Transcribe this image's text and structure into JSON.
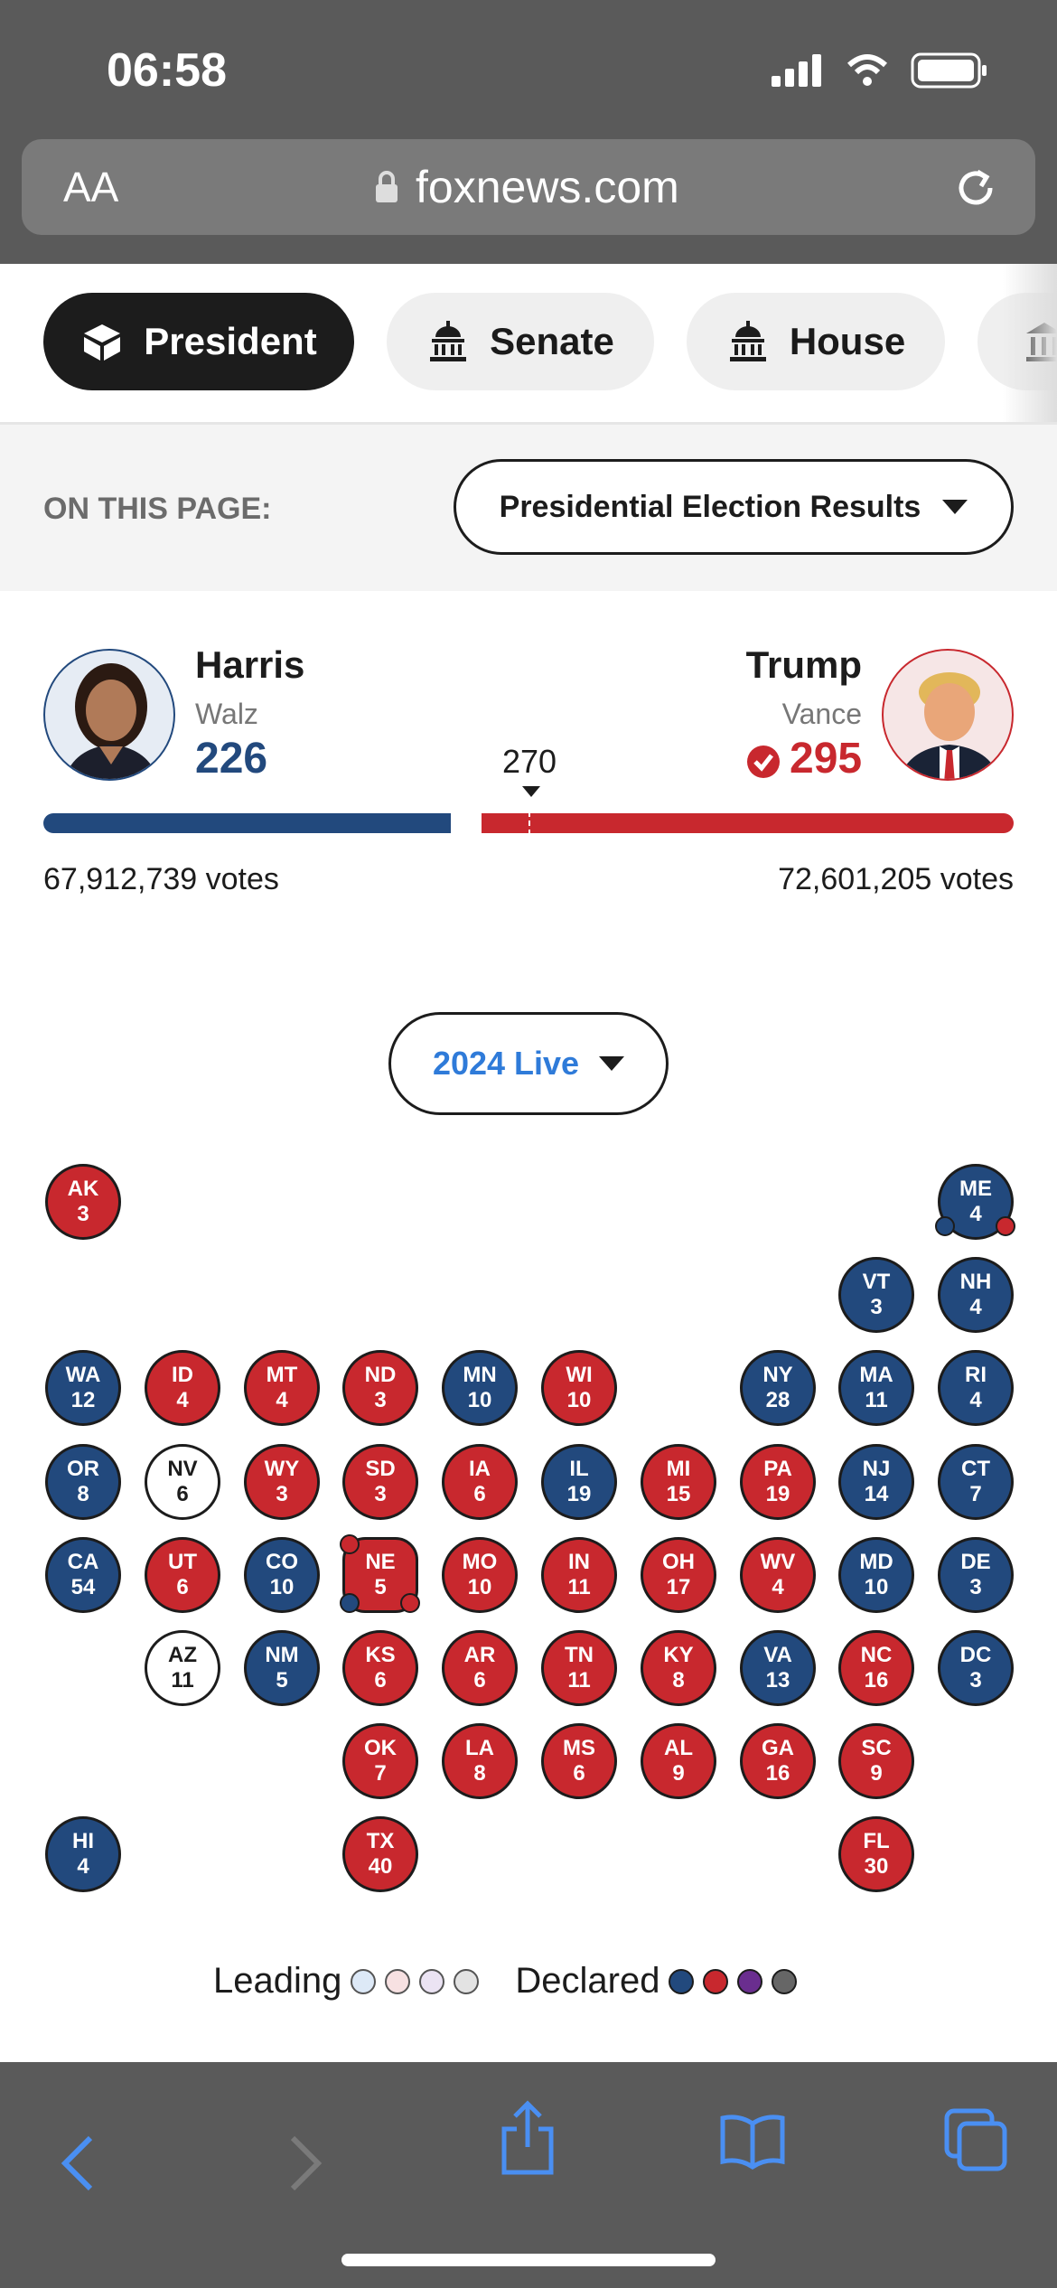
{
  "status_bar": {
    "time": "06:58"
  },
  "browser": {
    "text_size": "AA",
    "url": "foxnews.com"
  },
  "nav_tabs": [
    {
      "label": "President",
      "active": true
    },
    {
      "label": "Senate"
    },
    {
      "label": "House"
    }
  ],
  "on_this_page": {
    "label": "ON THIS PAGE:",
    "dropdown": "Presidential Election Results"
  },
  "race": {
    "left": {
      "name": "Harris",
      "running_mate": "Walz",
      "electoral_votes": "226",
      "votes": "67,912,739 votes"
    },
    "right": {
      "name": "Trump",
      "running_mate": "Vance",
      "electoral_votes": "295",
      "votes": "72,601,205 votes",
      "winner": true
    },
    "threshold": "270"
  },
  "year_select": "2024 Live",
  "states": [
    {
      "abbr": "AK",
      "ev": "3",
      "party": "r"
    },
    {
      "abbr": "ME",
      "ev": "4",
      "party": "d"
    },
    {
      "abbr": "VT",
      "ev": "3",
      "party": "d"
    },
    {
      "abbr": "NH",
      "ev": "4",
      "party": "d"
    },
    {
      "abbr": "WA",
      "ev": "12",
      "party": "d"
    },
    {
      "abbr": "ID",
      "ev": "4",
      "party": "r"
    },
    {
      "abbr": "MT",
      "ev": "4",
      "party": "r"
    },
    {
      "abbr": "ND",
      "ev": "3",
      "party": "r"
    },
    {
      "abbr": "MN",
      "ev": "10",
      "party": "d"
    },
    {
      "abbr": "WI",
      "ev": "10",
      "party": "r"
    },
    {
      "abbr": "NY",
      "ev": "28",
      "party": "d"
    },
    {
      "abbr": "MA",
      "ev": "11",
      "party": "d"
    },
    {
      "abbr": "RI",
      "ev": "4",
      "party": "d"
    },
    {
      "abbr": "OR",
      "ev": "8",
      "party": "d"
    },
    {
      "abbr": "NV",
      "ev": "6",
      "party": "u"
    },
    {
      "abbr": "WY",
      "ev": "3",
      "party": "r"
    },
    {
      "abbr": "SD",
      "ev": "3",
      "party": "r"
    },
    {
      "abbr": "IA",
      "ev": "6",
      "party": "r"
    },
    {
      "abbr": "IL",
      "ev": "19",
      "party": "d"
    },
    {
      "abbr": "MI",
      "ev": "15",
      "party": "r"
    },
    {
      "abbr": "PA",
      "ev": "19",
      "party": "r"
    },
    {
      "abbr": "NJ",
      "ev": "14",
      "party": "d"
    },
    {
      "abbr": "CT",
      "ev": "7",
      "party": "d"
    },
    {
      "abbr": "CA",
      "ev": "54",
      "party": "d"
    },
    {
      "abbr": "UT",
      "ev": "6",
      "party": "r"
    },
    {
      "abbr": "CO",
      "ev": "10",
      "party": "d"
    },
    {
      "abbr": "NE",
      "ev": "5",
      "party": "r"
    },
    {
      "abbr": "MO",
      "ev": "10",
      "party": "r"
    },
    {
      "abbr": "IN",
      "ev": "11",
      "party": "r"
    },
    {
      "abbr": "OH",
      "ev": "17",
      "party": "r"
    },
    {
      "abbr": "WV",
      "ev": "4",
      "party": "r"
    },
    {
      "abbr": "MD",
      "ev": "10",
      "party": "d"
    },
    {
      "abbr": "DE",
      "ev": "3",
      "party": "d"
    },
    {
      "abbr": "AZ",
      "ev": "11",
      "party": "u"
    },
    {
      "abbr": "NM",
      "ev": "5",
      "party": "d"
    },
    {
      "abbr": "KS",
      "ev": "6",
      "party": "r"
    },
    {
      "abbr": "AR",
      "ev": "6",
      "party": "r"
    },
    {
      "abbr": "TN",
      "ev": "11",
      "party": "r"
    },
    {
      "abbr": "KY",
      "ev": "8",
      "party": "r"
    },
    {
      "abbr": "VA",
      "ev": "13",
      "party": "d"
    },
    {
      "abbr": "NC",
      "ev": "16",
      "party": "r"
    },
    {
      "abbr": "DC",
      "ev": "3",
      "party": "d"
    },
    {
      "abbr": "OK",
      "ev": "7",
      "party": "r"
    },
    {
      "abbr": "LA",
      "ev": "8",
      "party": "r"
    },
    {
      "abbr": "MS",
      "ev": "6",
      "party": "r"
    },
    {
      "abbr": "AL",
      "ev": "9",
      "party": "r"
    },
    {
      "abbr": "GA",
      "ev": "16",
      "party": "r"
    },
    {
      "abbr": "SC",
      "ev": "9",
      "party": "r"
    },
    {
      "abbr": "HI",
      "ev": "4",
      "party": "d"
    },
    {
      "abbr": "TX",
      "ev": "40",
      "party": "r"
    },
    {
      "abbr": "FL",
      "ev": "30",
      "party": "r"
    }
  ],
  "legend": {
    "leading": "Leading",
    "declared": "Declared"
  },
  "colors": {
    "dem": "#22497d",
    "rep": "#c8282e",
    "leading_dem": "#dde9f7",
    "leading_rep": "#f7e1e2",
    "leading_other": "#ebe3f3",
    "leading_gray": "#e3e3e3",
    "declared_other": "#6a2e8f",
    "declared_gray": "#666666"
  }
}
